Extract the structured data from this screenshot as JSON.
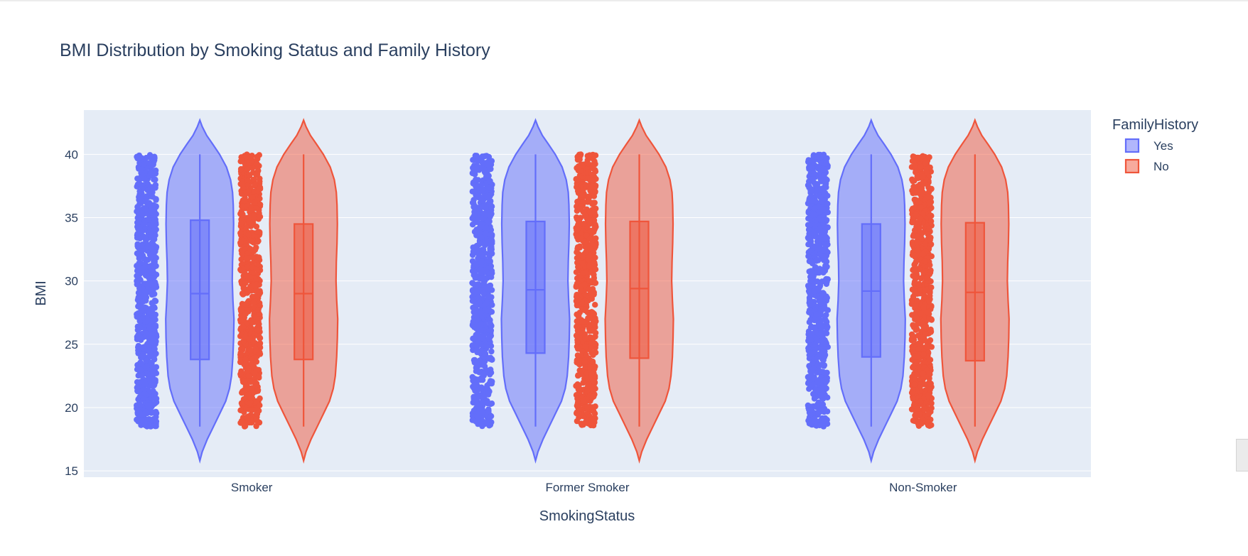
{
  "chart_data": {
    "type": "violin",
    "title": "BMI Distribution by Smoking Status and Family History",
    "xlabel": "SmokingStatus",
    "ylabel": "BMI",
    "categories": [
      "Smoker",
      "Former Smoker",
      "Non-Smoker"
    ],
    "ylim": [
      14.5,
      43.5
    ],
    "yticks": [
      15,
      20,
      25,
      30,
      35,
      40
    ],
    "grid": true,
    "legend": {
      "title": "FamilyHistory",
      "placement": "right"
    },
    "points": "all",
    "box": true,
    "series": [
      {
        "name": "Yes",
        "color": "#636efa",
        "data_range": [
          18.5,
          40
        ],
        "kde_range": [
          15.8,
          42.7
        ],
        "stats": [
          {
            "category": "Smoker",
            "q1": 23.8,
            "median": 29.0,
            "q3": 34.8,
            "min": 18.5,
            "max": 40
          },
          {
            "category": "Former Smoker",
            "q1": 24.3,
            "median": 29.3,
            "q3": 34.7,
            "min": 18.5,
            "max": 40
          },
          {
            "category": "Non-Smoker",
            "q1": 24.0,
            "median": 29.2,
            "q3": 34.5,
            "min": 18.5,
            "max": 40
          }
        ]
      },
      {
        "name": "No",
        "color": "#ef553b",
        "data_range": [
          18.5,
          40
        ],
        "kde_range": [
          15.8,
          42.7
        ],
        "stats": [
          {
            "category": "Smoker",
            "q1": 23.8,
            "median": 29.0,
            "q3": 34.5,
            "min": 18.5,
            "max": 40
          },
          {
            "category": "Former Smoker",
            "q1": 23.9,
            "median": 29.4,
            "q3": 34.7,
            "min": 18.5,
            "max": 40
          },
          {
            "category": "Non-Smoker",
            "q1": 23.7,
            "median": 29.1,
            "q3": 34.6,
            "min": 18.5,
            "max": 40
          }
        ]
      }
    ]
  }
}
